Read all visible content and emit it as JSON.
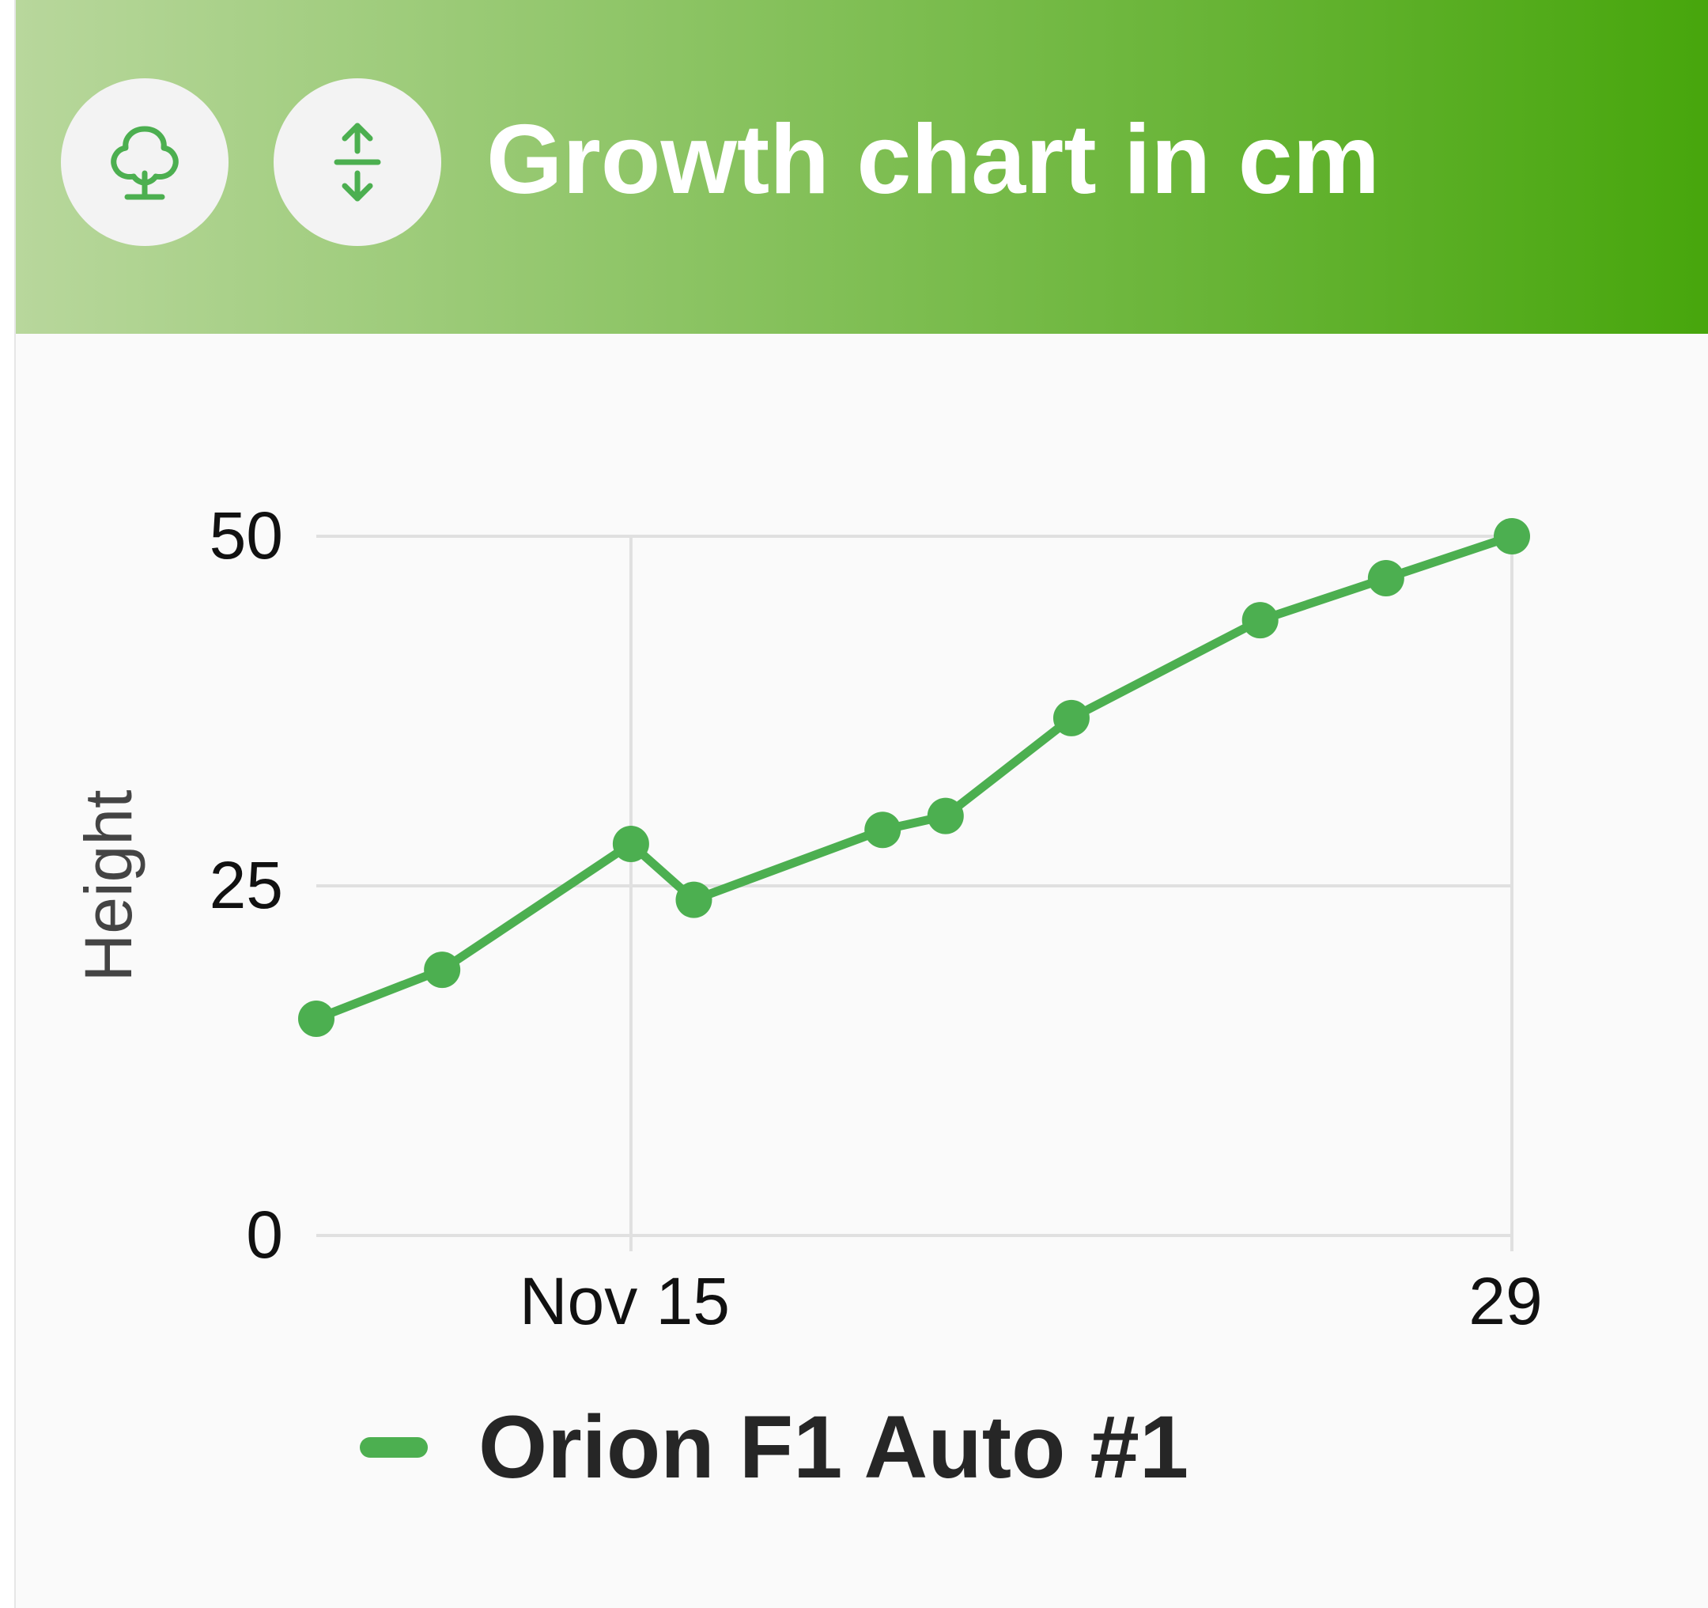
{
  "header": {
    "title": "Growth chart in cm",
    "gradient_start": "#b8d79c",
    "gradient_end": "#47a60c",
    "icons": [
      "tree-icon",
      "height-arrows-icon"
    ],
    "icon_color": "#4caf50"
  },
  "chart_data": {
    "type": "line",
    "title": "",
    "xlabel": "",
    "ylabel": "Height",
    "ylim": [
      0,
      50
    ],
    "yticks": [
      {
        "value": 0,
        "label": "0"
      },
      {
        "value": 25,
        "label": "25"
      },
      {
        "value": 50,
        "label": "50"
      }
    ],
    "xlim": [
      "Nov 10",
      "Nov 29"
    ],
    "xticks": [
      {
        "value": "Nov 15",
        "label": "Nov 15"
      },
      {
        "value": "Nov 29",
        "label": "29"
      }
    ],
    "grid": true,
    "legend_position": "bottom",
    "series": [
      {
        "name": "Orion F1 Auto #1",
        "color": "#4caf50",
        "points": [
          {
            "x": "Nov 10",
            "y": 15.5
          },
          {
            "x": "Nov 12",
            "y": 19
          },
          {
            "x": "Nov 15",
            "y": 28
          },
          {
            "x": "Nov 16",
            "y": 24
          },
          {
            "x": "Nov 19",
            "y": 29
          },
          {
            "x": "Nov 20",
            "y": 30
          },
          {
            "x": "Nov 22",
            "y": 37
          },
          {
            "x": "Nov 25",
            "y": 44
          },
          {
            "x": "Nov 27",
            "y": 47
          },
          {
            "x": "Nov 29",
            "y": 50
          }
        ]
      }
    ]
  }
}
